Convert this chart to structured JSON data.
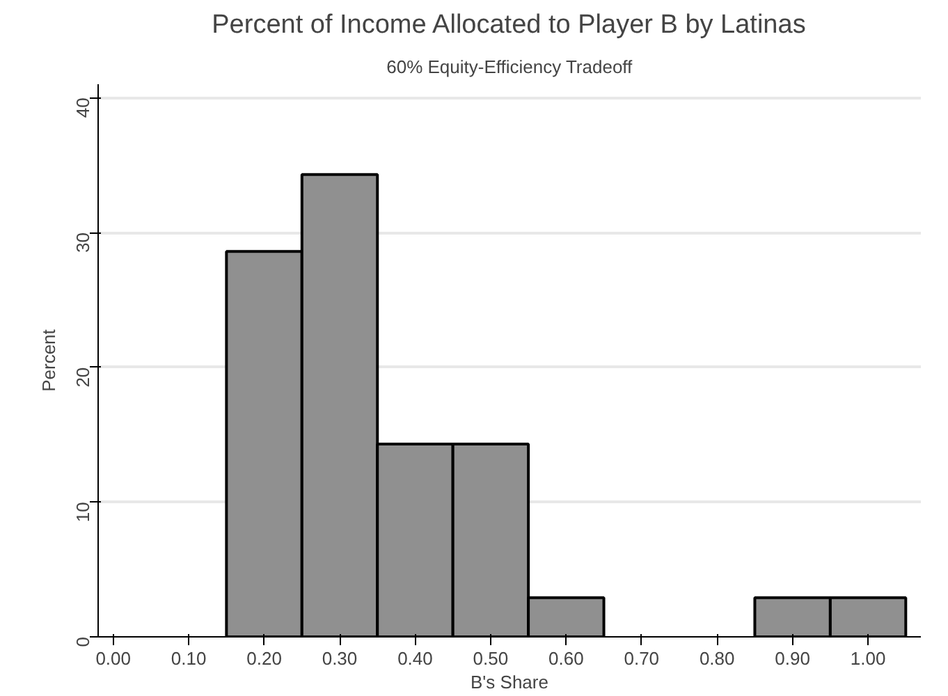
{
  "chart_data": {
    "type": "histogram",
    "title": "Percent of Income Allocated to Player B by Latinas",
    "subtitle": "60% Equity-Efficiency Tradeoff",
    "xlabel": "B's Share",
    "ylabel": "Percent",
    "bins": [
      0.15,
      0.25,
      0.35,
      0.45,
      0.55,
      0.65,
      0.75,
      0.85,
      0.95,
      1.05
    ],
    "values": [
      28.6,
      34.3,
      14.3,
      14.3,
      2.9,
      0,
      0,
      2.9,
      2.9
    ],
    "color": "#909090",
    "xlim": [
      -0.02,
      1.07
    ],
    "ylim": [
      0,
      41
    ],
    "xticks": [
      {
        "value": 0,
        "label": "0.00"
      },
      {
        "value": 0.1,
        "label": "0.10"
      },
      {
        "value": 0.2,
        "label": "0.20"
      },
      {
        "value": 0.3,
        "label": "0.30"
      },
      {
        "value": 0.4,
        "label": "0.40"
      },
      {
        "value": 0.5,
        "label": "0.50"
      },
      {
        "value": 0.6,
        "label": "0.60"
      },
      {
        "value": 0.7,
        "label": "0.70"
      },
      {
        "value": 0.8,
        "label": "0.80"
      },
      {
        "value": 0.9,
        "label": "0.90"
      },
      {
        "value": 1.0,
        "label": "1.00"
      }
    ],
    "yticks": [
      0,
      10,
      20,
      30,
      40
    ],
    "grid": "y"
  }
}
